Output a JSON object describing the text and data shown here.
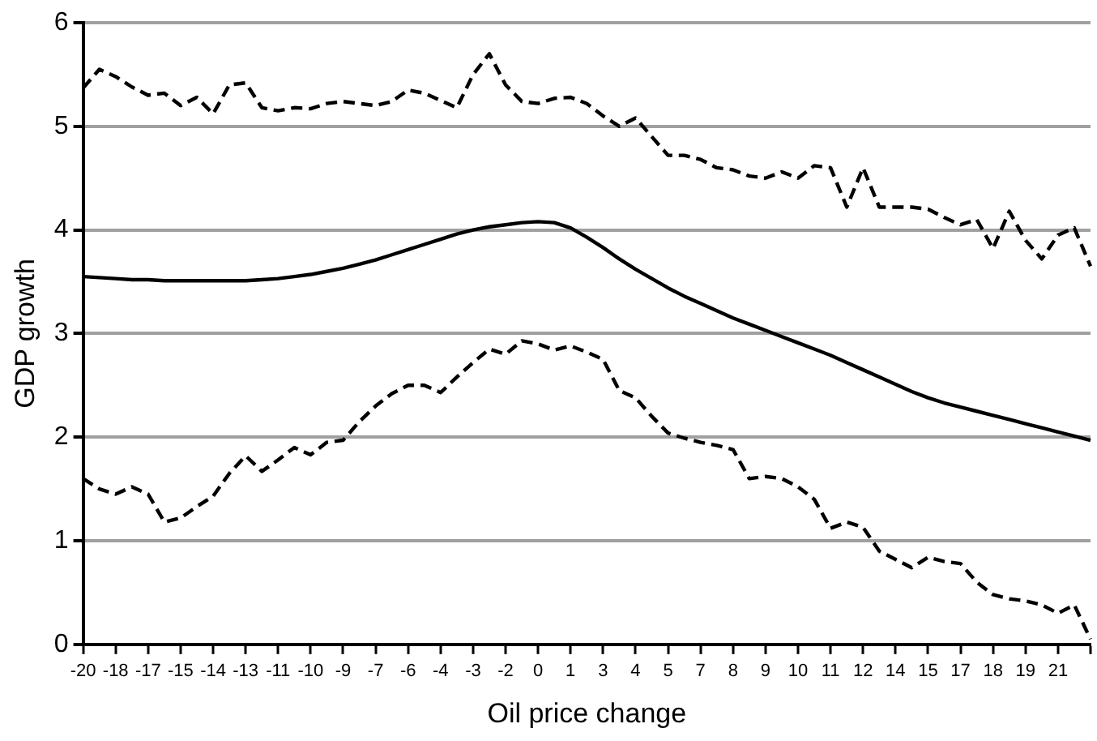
{
  "chart_data": {
    "type": "line",
    "xlabel": "Oil price change",
    "ylabel": "GDP growth",
    "categories": [
      "-20",
      null,
      "-18",
      null,
      "-17",
      null,
      "-15",
      null,
      "-14",
      null,
      "-13",
      null,
      "-11",
      null,
      "-10",
      null,
      "-9",
      null,
      "-7",
      null,
      "-6",
      null,
      "-4",
      null,
      "-3",
      null,
      "-2",
      null,
      "0",
      null,
      "1",
      null,
      "3",
      null,
      "4",
      null,
      "5",
      null,
      "7",
      null,
      "8",
      null,
      "9",
      null,
      "10",
      null,
      "11",
      null,
      "12",
      null,
      "14",
      null,
      "15",
      null,
      "17",
      null,
      "18",
      null,
      "19",
      null,
      "21",
      null,
      null
    ],
    "series": [
      {
        "color": "#000000",
        "line_style": "dashed",
        "values": [
          5.37,
          5.55,
          5.48,
          5.38,
          5.3,
          5.32,
          5.2,
          5.28,
          5.12,
          5.4,
          5.42,
          5.18,
          5.15,
          5.18,
          5.17,
          5.22,
          5.24,
          5.22,
          5.2,
          5.24,
          5.35,
          5.32,
          5.25,
          5.18,
          5.5,
          5.7,
          5.4,
          5.24,
          5.22,
          5.27,
          5.28,
          5.22,
          5.1,
          5.0,
          5.08,
          4.9,
          4.72,
          4.72,
          4.68,
          4.6,
          4.58,
          4.52,
          4.5,
          4.56,
          4.5,
          4.62,
          4.6,
          4.22,
          4.6,
          4.22,
          4.22,
          4.22,
          4.2,
          4.12,
          4.05,
          4.1,
          3.82,
          4.18,
          3.9,
          3.72,
          3.95,
          4.02,
          3.65
        ]
      },
      {
        "color": "#000000",
        "line_style": "solid",
        "values": [
          3.55,
          3.54,
          3.53,
          3.52,
          3.52,
          3.51,
          3.51,
          3.51,
          3.51,
          3.51,
          3.51,
          3.52,
          3.53,
          3.55,
          3.57,
          3.6,
          3.63,
          3.67,
          3.71,
          3.76,
          3.81,
          3.86,
          3.91,
          3.96,
          4.0,
          4.03,
          4.05,
          4.07,
          4.08,
          4.07,
          4.02,
          3.93,
          3.83,
          3.72,
          3.62,
          3.53,
          3.44,
          3.36,
          3.29,
          3.22,
          3.15,
          3.09,
          3.03,
          2.97,
          2.91,
          2.85,
          2.79,
          2.72,
          2.65,
          2.58,
          2.51,
          2.44,
          2.38,
          2.33,
          2.29,
          2.25,
          2.21,
          2.17,
          2.13,
          2.09,
          2.05,
          2.01,
          1.97
        ]
      },
      {
        "color": "#000000",
        "line_style": "dashed",
        "values": [
          1.6,
          1.5,
          1.45,
          1.52,
          1.45,
          1.18,
          1.22,
          1.33,
          1.43,
          1.65,
          1.82,
          1.67,
          1.78,
          1.9,
          1.83,
          1.95,
          1.97,
          2.15,
          2.3,
          2.42,
          2.5,
          2.5,
          2.43,
          2.58,
          2.72,
          2.85,
          2.8,
          2.93,
          2.9,
          2.84,
          2.88,
          2.82,
          2.75,
          2.45,
          2.38,
          2.2,
          2.04,
          1.99,
          1.95,
          1.92,
          1.88,
          1.6,
          1.62,
          1.6,
          1.52,
          1.4,
          1.12,
          1.18,
          1.13,
          0.9,
          0.82,
          0.74,
          0.84,
          0.8,
          0.78,
          0.6,
          0.48,
          0.44,
          0.42,
          0.38,
          0.3,
          0.38,
          0.05
        ]
      }
    ],
    "ylim": [
      0,
      6
    ],
    "yticks": [
      0,
      1,
      2,
      3,
      4,
      5,
      6
    ],
    "grid": "y",
    "marker": "none"
  }
}
